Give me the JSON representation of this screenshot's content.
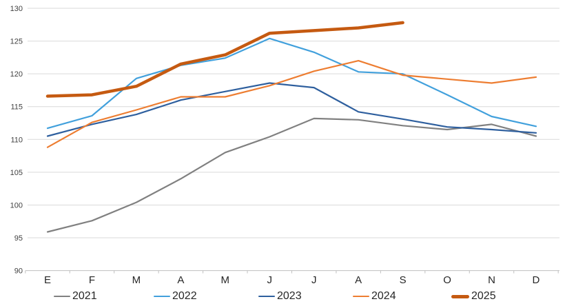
{
  "chart_data": {
    "type": "line",
    "title": "",
    "xlabel": "",
    "ylabel": "",
    "categories": [
      "E",
      "F",
      "M",
      "A",
      "M",
      "J",
      "J",
      "A",
      "S",
      "O",
      "N",
      "D"
    ],
    "series": [
      {
        "name": "2021",
        "color": "#808080",
        "values": [
          95.9,
          97.6,
          100.4,
          104.0,
          108.0,
          110.4,
          113.2,
          113.0,
          112.1,
          111.5,
          112.3,
          110.5
        ]
      },
      {
        "name": "2022",
        "color": "#41A0DC",
        "values": [
          111.7,
          113.6,
          119.3,
          121.3,
          122.4,
          125.4,
          123.3,
          120.3,
          120.0,
          116.8,
          113.5,
          112.0
        ]
      },
      {
        "name": "2023",
        "color": "#2E5F9E",
        "values": [
          110.5,
          112.3,
          113.8,
          116.0,
          117.3,
          118.6,
          117.9,
          114.2,
          113.1,
          111.9,
          111.5,
          111.0
        ]
      },
      {
        "name": "2024",
        "color": "#ED7D31",
        "values": [
          108.8,
          112.6,
          114.5,
          116.5,
          116.5,
          118.2,
          120.4,
          122.0,
          119.8,
          119.2,
          118.6,
          119.5
        ]
      },
      {
        "name": "2025",
        "color": "#C55A11",
        "values": [
          116.6,
          116.8,
          118.1,
          121.5,
          122.9,
          126.2,
          126.6,
          127.0,
          127.8
        ]
      }
    ],
    "ylim": [
      90,
      130
    ],
    "ytick_step": 5,
    "yticks": [
      90,
      95,
      100,
      105,
      110,
      115,
      120,
      125,
      130
    ],
    "grid": true,
    "legend_position": "bottom",
    "gridline_color": "#D9D9D9",
    "axis_color": "#BFBFBF",
    "ylabel_color": "#404040",
    "xlabel_color": "#262626"
  }
}
